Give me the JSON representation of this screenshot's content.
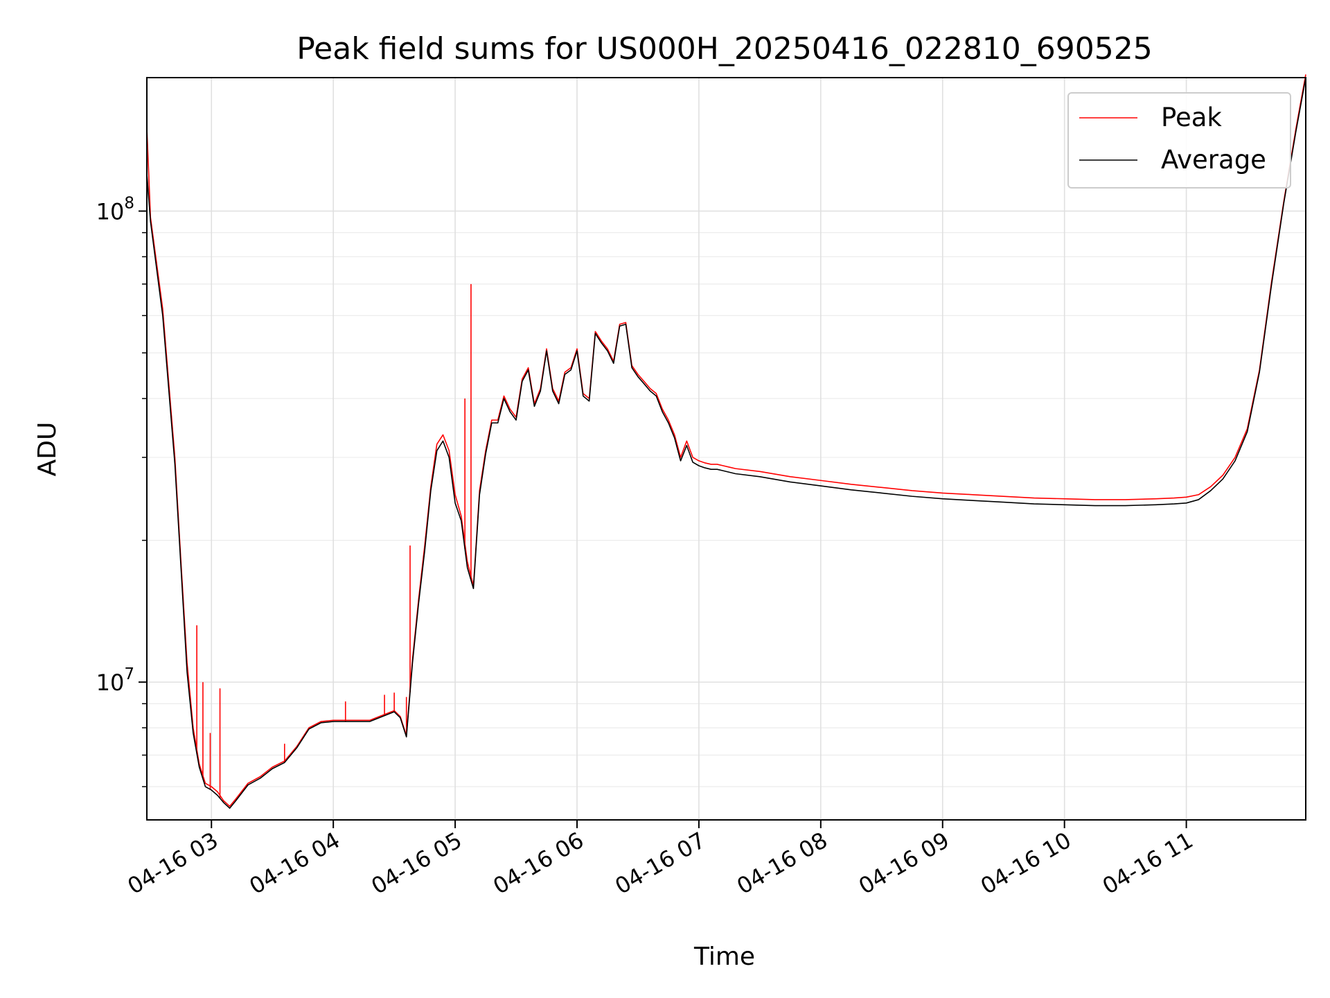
{
  "chart_data": {
    "type": "line",
    "title": "Peak field sums for US000H_20250416_022810_690525",
    "xlabel": "Time",
    "ylabel": "ADU",
    "yscale": "log",
    "x_unit": "hours (decimal hour of 2025-04-16)",
    "xlim": [
      2.47,
      11.98
    ],
    "ylim": [
      5100000,
      192000000
    ],
    "x_ticks": [
      {
        "value": 3,
        "label": "04-16 03"
      },
      {
        "value": 4,
        "label": "04-16 04"
      },
      {
        "value": 5,
        "label": "04-16 05"
      },
      {
        "value": 6,
        "label": "04-16 06"
      },
      {
        "value": 7,
        "label": "04-16 07"
      },
      {
        "value": 8,
        "label": "04-16 08"
      },
      {
        "value": 9,
        "label": "04-16 09"
      },
      {
        "value": 10,
        "label": "04-16 10"
      },
      {
        "value": 11,
        "label": "04-16 11"
      }
    ],
    "y_ticks": [
      {
        "value": 10000000,
        "base": "10",
        "exp": "7"
      },
      {
        "value": 100000000,
        "base": "10",
        "exp": "8"
      }
    ],
    "grid": true,
    "legend_position": "top-right",
    "series": [
      {
        "name": "Peak",
        "color": "#ff0000",
        "x": [
          2.47,
          2.5,
          2.6,
          2.7,
          2.75,
          2.8,
          2.85,
          2.9,
          2.95,
          3.0,
          3.05,
          3.1,
          3.15,
          3.2,
          3.3,
          3.4,
          3.5,
          3.6,
          3.7,
          3.8,
          3.9,
          4.0,
          4.1,
          4.2,
          4.3,
          4.4,
          4.5,
          4.55,
          4.6,
          4.65,
          4.7,
          4.75,
          4.8,
          4.85,
          4.9,
          4.95,
          5.0,
          5.05,
          5.1,
          5.15,
          5.2,
          5.25,
          5.3,
          5.35,
          5.4,
          5.45,
          5.5,
          5.55,
          5.6,
          5.65,
          5.7,
          5.75,
          5.8,
          5.85,
          5.9,
          5.95,
          6.0,
          6.05,
          6.1,
          6.15,
          6.2,
          6.25,
          6.3,
          6.35,
          6.4,
          6.45,
          6.5,
          6.55,
          6.6,
          6.65,
          6.7,
          6.75,
          6.8,
          6.85,
          6.9,
          6.95,
          7.0,
          7.05,
          7.1,
          7.15,
          7.2,
          7.25,
          7.3,
          7.5,
          7.75,
          8.0,
          8.25,
          8.5,
          8.75,
          9.0,
          9.25,
          9.5,
          9.75,
          10.0,
          10.25,
          10.5,
          10.75,
          10.9,
          11.0,
          11.1,
          11.2,
          11.3,
          11.4,
          11.5,
          11.6,
          11.7,
          11.8,
          11.9,
          11.98
        ],
        "y": [
          150000000,
          97000000,
          62000000,
          30000000,
          18000000,
          11000000,
          8000000,
          6700000,
          6100000,
          6000000,
          5850000,
          5600000,
          5450000,
          5650000,
          6100000,
          6300000,
          6600000,
          6800000,
          7300000,
          8000000,
          8250000,
          8300000,
          8300000,
          8300000,
          8300000,
          8500000,
          8700000,
          8450000,
          7700000,
          11200000,
          15000000,
          19500000,
          26000000,
          32000000,
          33500000,
          31000000,
          25000000,
          22500000,
          18000000,
          16000000,
          25500000,
          31000000,
          36000000,
          36000000,
          40500000,
          38000000,
          36500000,
          44000000,
          46500000,
          39000000,
          42000000,
          51000000,
          42000000,
          39500000,
          45500000,
          46500000,
          51000000,
          41000000,
          40000000,
          55500000,
          53000000,
          51000000,
          48000000,
          57500000,
          58000000,
          47000000,
          45000000,
          43500000,
          42000000,
          41000000,
          38000000,
          36000000,
          33500000,
          30000000,
          32500000,
          30000000,
          29500000,
          29200000,
          29000000,
          29000000,
          28800000,
          28600000,
          28400000,
          28000000,
          27300000,
          26800000,
          26300000,
          25900000,
          25500000,
          25200000,
          25000000,
          24800000,
          24600000,
          24500000,
          24400000,
          24400000,
          24500000,
          24600000,
          24700000,
          25000000,
          26000000,
          27500000,
          30000000,
          34500000,
          46000000,
          71000000,
          105000000,
          150000000,
          195000000
        ],
        "spikes": [
          {
            "x": 2.88,
            "y": 13200000
          },
          {
            "x": 2.93,
            "y": 10000000
          },
          {
            "x": 2.99,
            "y": 7800000
          },
          {
            "x": 3.07,
            "y": 9700000
          },
          {
            "x": 3.6,
            "y": 7400000
          },
          {
            "x": 4.1,
            "y": 9100000
          },
          {
            "x": 4.42,
            "y": 9400000
          },
          {
            "x": 4.5,
            "y": 9500000
          },
          {
            "x": 4.6,
            "y": 9300000
          },
          {
            "x": 4.63,
            "y": 19500000
          },
          {
            "x": 5.08,
            "y": 40000000
          },
          {
            "x": 5.13,
            "y": 70000000
          }
        ]
      },
      {
        "name": "Average",
        "color": "#000000",
        "x": [
          2.47,
          2.5,
          2.6,
          2.7,
          2.75,
          2.8,
          2.85,
          2.9,
          2.95,
          3.0,
          3.05,
          3.1,
          3.15,
          3.2,
          3.3,
          3.4,
          3.5,
          3.6,
          3.7,
          3.8,
          3.9,
          4.0,
          4.1,
          4.2,
          4.3,
          4.4,
          4.5,
          4.55,
          4.6,
          4.65,
          4.7,
          4.75,
          4.8,
          4.85,
          4.9,
          4.95,
          5.0,
          5.05,
          5.1,
          5.15,
          5.2,
          5.25,
          5.3,
          5.35,
          5.4,
          5.45,
          5.5,
          5.55,
          5.6,
          5.65,
          5.7,
          5.75,
          5.8,
          5.85,
          5.9,
          5.95,
          6.0,
          6.05,
          6.1,
          6.15,
          6.2,
          6.25,
          6.3,
          6.35,
          6.4,
          6.45,
          6.5,
          6.55,
          6.6,
          6.65,
          6.7,
          6.75,
          6.8,
          6.85,
          6.9,
          6.95,
          7.0,
          7.05,
          7.1,
          7.15,
          7.2,
          7.25,
          7.3,
          7.5,
          7.75,
          8.0,
          8.25,
          8.5,
          8.75,
          9.0,
          9.25,
          9.5,
          9.75,
          10.0,
          10.25,
          10.5,
          10.75,
          10.9,
          11.0,
          11.1,
          11.2,
          11.3,
          11.4,
          11.5,
          11.6,
          11.7,
          11.8,
          11.9,
          11.98
        ],
        "y": [
          120000000,
          95000000,
          60000000,
          29000000,
          17500000,
          10500000,
          7800000,
          6600000,
          6000000,
          5900000,
          5750000,
          5550000,
          5400000,
          5600000,
          6050000,
          6250000,
          6550000,
          6750000,
          7250000,
          7950000,
          8200000,
          8250000,
          8250000,
          8250000,
          8250000,
          8450000,
          8650000,
          8400000,
          7650000,
          11000000,
          14700000,
          19000000,
          25500000,
          31000000,
          32500000,
          30000000,
          24000000,
          22000000,
          17500000,
          15800000,
          25000000,
          30500000,
          35500000,
          35500000,
          40000000,
          37500000,
          36000000,
          43500000,
          46000000,
          38500000,
          41500000,
          50500000,
          41500000,
          39000000,
          45000000,
          46000000,
          50500000,
          40500000,
          39500000,
          55000000,
          52500000,
          50500000,
          47500000,
          57000000,
          57500000,
          46500000,
          44500000,
          43000000,
          41500000,
          40500000,
          37500000,
          35500000,
          33000000,
          29500000,
          31800000,
          29300000,
          28800000,
          28500000,
          28300000,
          28300000,
          28100000,
          27900000,
          27700000,
          27300000,
          26600000,
          26100000,
          25600000,
          25200000,
          24800000,
          24500000,
          24300000,
          24100000,
          23900000,
          23800000,
          23700000,
          23700000,
          23800000,
          23900000,
          24000000,
          24400000,
          25500000,
          27000000,
          29500000,
          34000000,
          45500000,
          70000000,
          104000000,
          148000000,
          192000000
        ]
      }
    ]
  }
}
